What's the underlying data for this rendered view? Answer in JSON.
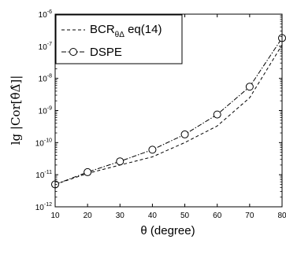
{
  "chart_data": {
    "type": "line",
    "xlabel": "θ (degree)",
    "ylabel": "lg |Cor[θ̂Δ̂]|",
    "y_scale": "log",
    "xlim": [
      10,
      80
    ],
    "ylim": [
      1e-12,
      1e-06
    ],
    "x_ticks": [
      "10",
      "20",
      "30",
      "40",
      "50",
      "60",
      "70",
      "80"
    ],
    "y_ticks": [
      {
        "base": "10",
        "exp": "-12"
      },
      {
        "base": "10",
        "exp": "-11"
      },
      {
        "base": "10",
        "exp": "-10"
      },
      {
        "base": "10",
        "exp": "-9"
      },
      {
        "base": "10",
        "exp": "-8"
      },
      {
        "base": "10",
        "exp": "-7"
      },
      {
        "base": "10",
        "exp": "-6"
      }
    ],
    "grid": false,
    "legend_position": "top-left",
    "series": [
      {
        "name": "BCR",
        "name_sub": "θΔ",
        "name_rest": " eq(14)",
        "style": "dashed",
        "x": [
          10,
          20,
          30,
          40,
          50,
          60,
          70,
          80
        ],
        "y": [
          5e-12,
          1.1e-11,
          2e-11,
          3.6e-11,
          1e-10,
          3.3e-10,
          2.5e-09,
          1.1e-07
        ]
      },
      {
        "name": "DSPE",
        "style": "dash-dot",
        "marker": "circle",
        "x": [
          10,
          20,
          30,
          40,
          50,
          60,
          70,
          80
        ],
        "y": [
          5e-12,
          1.2e-11,
          2.6e-11,
          6e-11,
          1.8e-10,
          7.5e-10,
          5.5e-09,
          1.8e-07
        ]
      }
    ]
  }
}
